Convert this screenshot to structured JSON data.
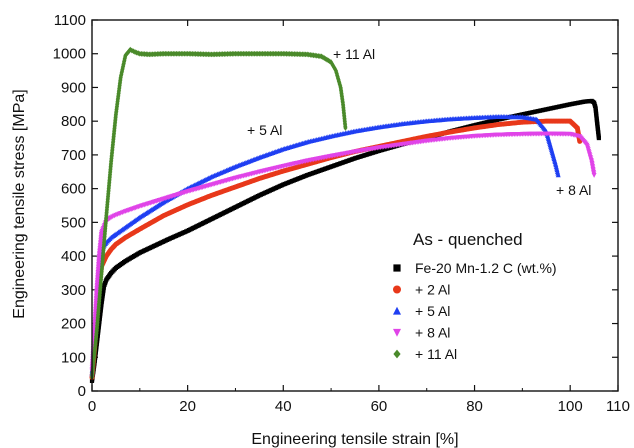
{
  "chart_data": {
    "type": "scatter",
    "title": "",
    "xlabel": "Engineering tensile strain [%]",
    "ylabel": "Engineering tensile stress [MPa]",
    "xlim": [
      0,
      110
    ],
    "ylim": [
      0,
      1100
    ],
    "xticks": [
      0,
      20,
      40,
      60,
      80,
      100,
      110
    ],
    "yticks": [
      0,
      100,
      200,
      300,
      400,
      500,
      600,
      700,
      800,
      900,
      1000,
      1100
    ],
    "grid": false,
    "legend_position": "right",
    "legend_title": "As - quenched",
    "annotations": [
      {
        "text": "+ 11 Al",
        "x": 53,
        "y": 1010
      },
      {
        "text": "+ 5 Al",
        "x": 34,
        "y": 810
      },
      {
        "text": "+ 8 Al",
        "x": 102,
        "y": 520
      }
    ],
    "series": [
      {
        "name": "Fe-20 Mn-1.2 C  (wt.%)",
        "marker": "square",
        "color": "#000000",
        "x": [
          0,
          0.5,
          1,
          1.5,
          2,
          2.5,
          3,
          4,
          5,
          7,
          10,
          13,
          16,
          20,
          25,
          30,
          35,
          40,
          45,
          50,
          55,
          60,
          65,
          70,
          75,
          80,
          85,
          90,
          95,
          100,
          103,
          104.5,
          105,
          105.3,
          105.6,
          106
        ],
        "y": [
          30,
          80,
          140,
          200,
          260,
          310,
          330,
          350,
          365,
          385,
          410,
          430,
          450,
          475,
          510,
          545,
          580,
          612,
          640,
          665,
          690,
          712,
          732,
          750,
          770,
          788,
          805,
          820,
          835,
          850,
          858,
          860,
          855,
          840,
          800,
          750
        ]
      },
      {
        "name": "+ 2 Al",
        "marker": "circle",
        "color": "#e8381a",
        "x": [
          0,
          0.5,
          1,
          1.5,
          2,
          3,
          4,
          5,
          7,
          10,
          15,
          20,
          25,
          30,
          35,
          40,
          45,
          50,
          55,
          60,
          65,
          70,
          75,
          80,
          85,
          90,
          95,
          100,
          101.5,
          102
        ],
        "y": [
          40,
          120,
          220,
          310,
          370,
          400,
          420,
          435,
          455,
          480,
          520,
          552,
          580,
          605,
          630,
          652,
          672,
          692,
          710,
          725,
          740,
          755,
          768,
          780,
          790,
          797,
          800,
          800,
          780,
          740
        ]
      },
      {
        "name": "+ 5 Al",
        "marker": "triangle",
        "color": "#1f3ff2",
        "x": [
          0,
          0.5,
          1,
          1.5,
          2,
          3,
          4,
          5,
          7,
          10,
          15,
          20,
          25,
          30,
          35,
          40,
          45,
          50,
          55,
          60,
          65,
          70,
          75,
          80,
          85,
          90,
          93,
          95,
          96,
          97,
          97.5
        ],
        "y": [
          50,
          150,
          260,
          360,
          420,
          440,
          455,
          465,
          485,
          515,
          560,
          600,
          635,
          665,
          692,
          717,
          738,
          755,
          770,
          782,
          792,
          800,
          806,
          810,
          813,
          812,
          805,
          770,
          720,
          670,
          640
        ]
      },
      {
        "name": "+ 8 Al",
        "marker": "triangle-down",
        "color": "#e044e8",
        "x": [
          0,
          0.5,
          1,
          1.5,
          2,
          3,
          4,
          5,
          7,
          10,
          15,
          20,
          25,
          30,
          35,
          40,
          45,
          50,
          55,
          60,
          65,
          70,
          75,
          80,
          85,
          90,
          95,
          100,
          102,
          103.5,
          104.5,
          105
        ],
        "y": [
          60,
          180,
          300,
          400,
          470,
          505,
          515,
          522,
          533,
          548,
          570,
          592,
          612,
          632,
          650,
          667,
          683,
          697,
          710,
          722,
          732,
          742,
          750,
          756,
          760,
          762,
          763,
          762,
          755,
          730,
          680,
          640
        ]
      },
      {
        "name": "+ 11 Al",
        "marker": "diamond",
        "color": "#4a8a2a",
        "x": [
          0,
          1,
          2,
          3,
          4,
          5,
          6,
          7,
          8,
          9,
          10,
          12,
          15,
          20,
          25,
          30,
          35,
          40,
          45,
          48,
          50,
          51,
          52,
          52.5,
          53
        ],
        "y": [
          40,
          180,
          350,
          520,
          680,
          820,
          930,
          995,
          1012,
          1005,
          1000,
          998,
          1000,
          1000,
          998,
          1000,
          1000,
          1000,
          998,
          992,
          975,
          950,
          900,
          850,
          780
        ]
      }
    ]
  }
}
